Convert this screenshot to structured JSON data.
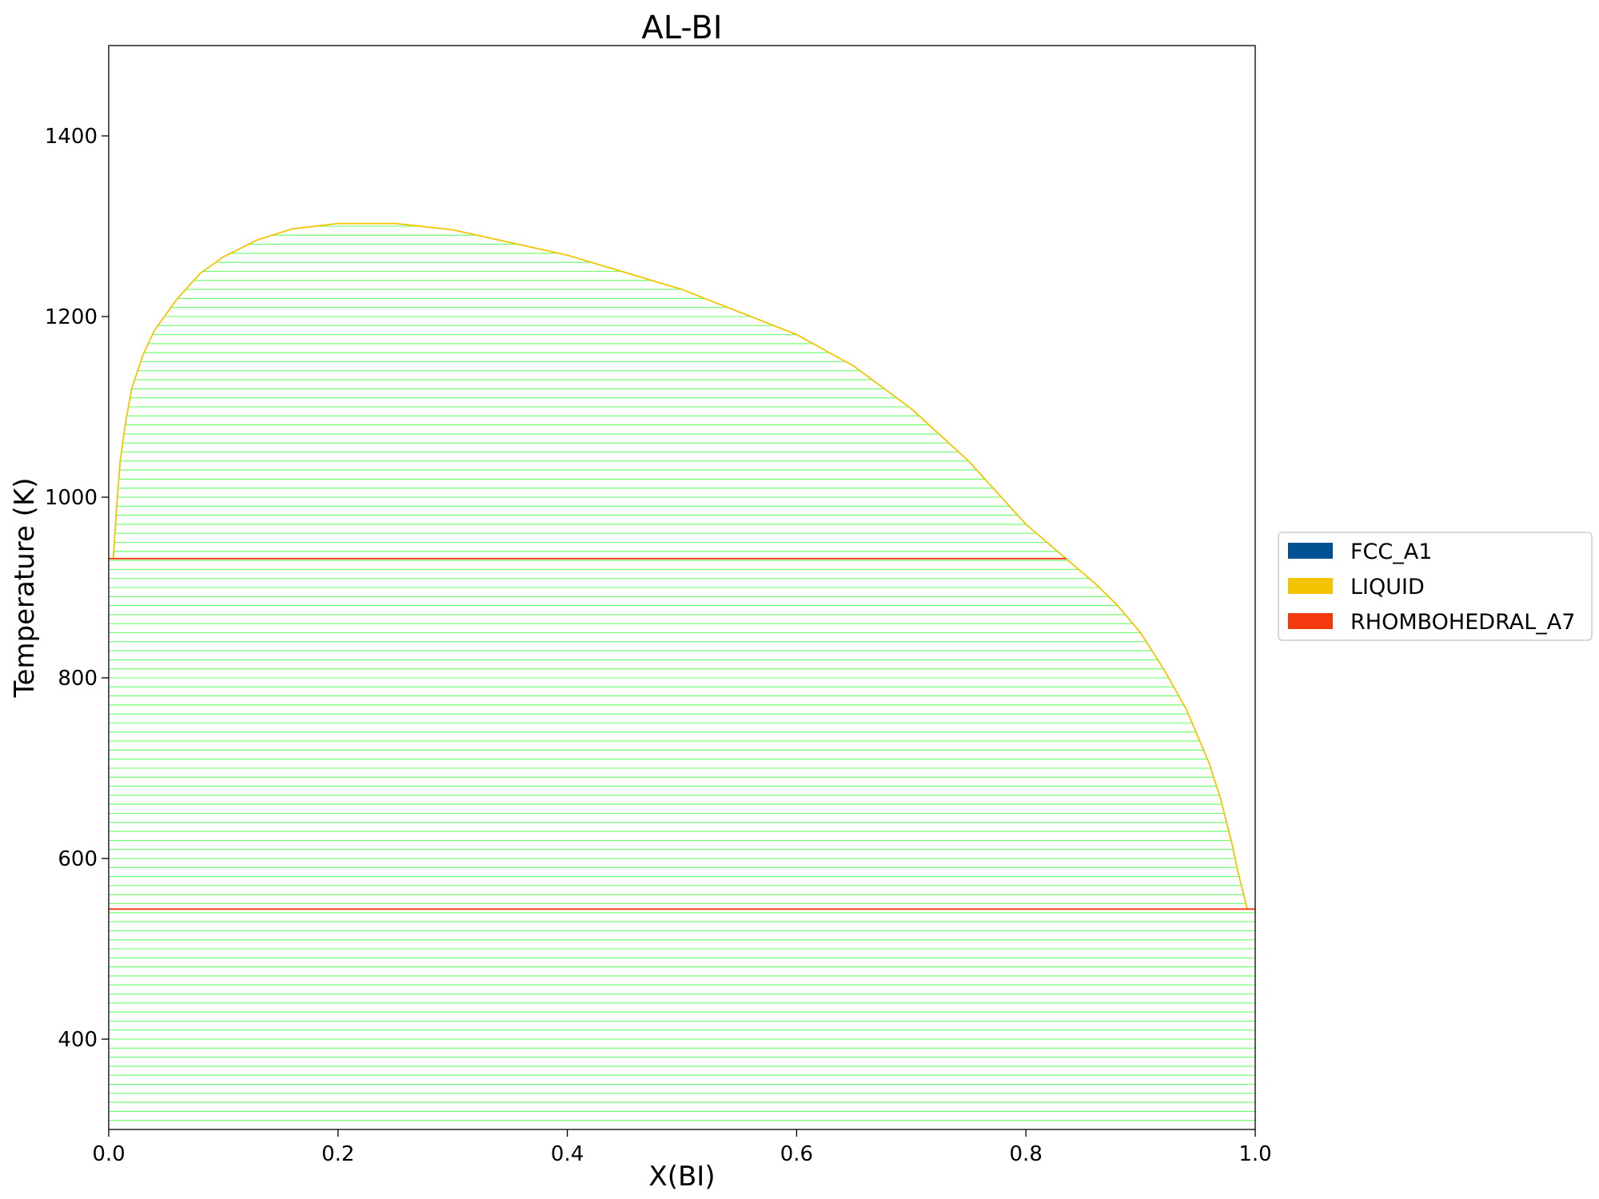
{
  "chart_data": {
    "type": "line",
    "title": "AL-BI",
    "xlabel": "X(BI)",
    "ylabel": "Temperature (K)",
    "xlim": [
      0.0,
      1.0
    ],
    "ylim": [
      300,
      1500
    ],
    "xticks": [
      "0.0",
      "0.2",
      "0.4",
      "0.6",
      "0.8",
      "1.0"
    ],
    "yticks": [
      "400",
      "600",
      "800",
      "1000",
      "1200",
      "1400"
    ],
    "grid": false,
    "legend_position": "right",
    "legend": [
      {
        "label": "FCC_A1",
        "color": "#005293"
      },
      {
        "label": "LIQUID",
        "color": "#f2c500"
      },
      {
        "label": "RHOMBOHEDRAL_A7",
        "color": "#f5390f"
      }
    ],
    "series": [
      {
        "name": "LIQUID",
        "color": "#f2c500",
        "x": [
          0.004,
          0.007,
          0.01,
          0.015,
          0.02,
          0.03,
          0.04,
          0.06,
          0.08,
          0.1,
          0.13,
          0.16,
          0.2,
          0.25,
          0.3,
          0.4,
          0.5,
          0.6,
          0.65,
          0.7,
          0.75,
          0.8,
          0.835
        ],
        "y": [
          932,
          990,
          1040,
          1085,
          1120,
          1158,
          1185,
          1220,
          1248,
          1266,
          1285,
          1297,
          1303,
          1303,
          1296,
          1268,
          1230,
          1180,
          1145,
          1098,
          1040,
          970,
          932
        ]
      },
      {
        "name": "LIQUID",
        "color": "#f2c500",
        "x": [
          0.835,
          0.86,
          0.88,
          0.9,
          0.92,
          0.94,
          0.96,
          0.97,
          0.98,
          0.985,
          0.99,
          0.993
        ],
        "y": [
          932,
          905,
          880,
          850,
          810,
          765,
          705,
          665,
          615,
          585,
          560,
          544
        ]
      },
      {
        "name": "RHOMBOHEDRAL_A7",
        "color": "#f5390f",
        "x": [
          0.0,
          0.835
        ],
        "y": [
          932,
          932
        ]
      },
      {
        "name": "RHOMBOHEDRAL_A7",
        "color": "#f5390f",
        "x": [
          0.0,
          1.0
        ],
        "y": [
          544,
          544
        ]
      }
    ],
    "tie_lines": {
      "color": "#66ff66",
      "t_start": 310,
      "t_end": 1300,
      "t_step": 10
    }
  }
}
